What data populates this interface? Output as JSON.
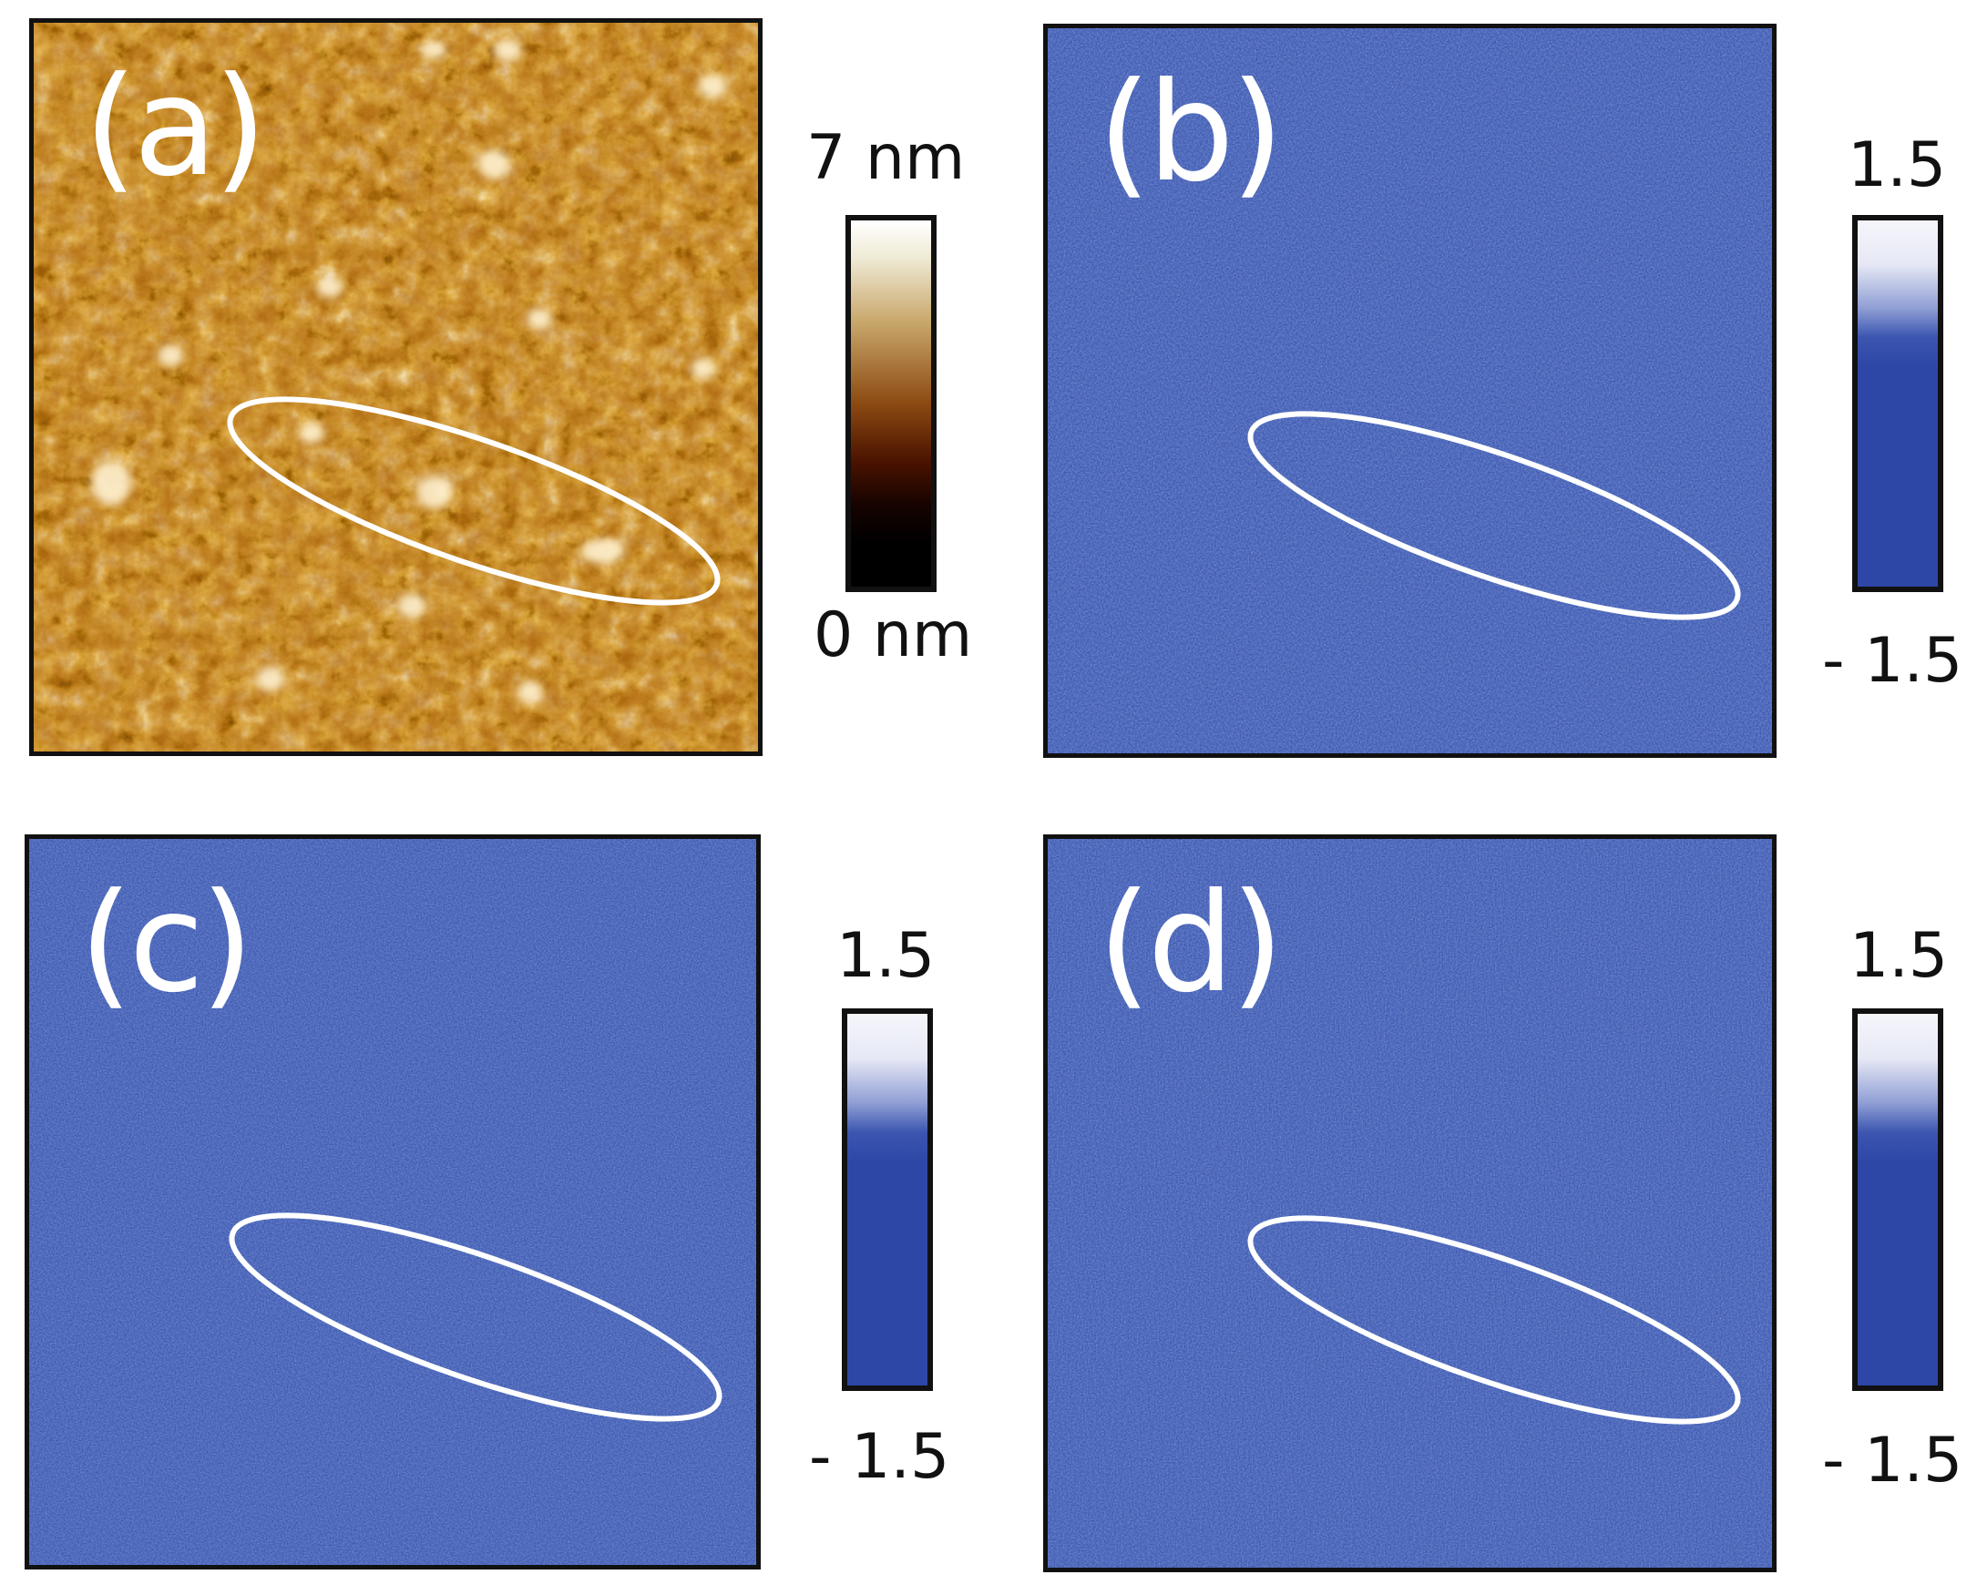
{
  "figure": {
    "panels": [
      {
        "label": "(a)",
        "type": "height",
        "colormap": [
          "#000000",
          "#2a0a00",
          "#6b2300",
          "#a64e00",
          "#cf7f1b",
          "#e9b866",
          "#ffffff"
        ],
        "scale": {
          "max_label": "7 nm",
          "min_label": "0 nm"
        }
      },
      {
        "label": "(b)",
        "type": "map",
        "colormap": [
          "#2d47a6",
          "#2d47a6",
          "#3852ad",
          "#f5f6fb"
        ],
        "scale": {
          "max_label": "1.5",
          "min_label": "- 1.5"
        }
      },
      {
        "label": "(c)",
        "type": "map",
        "colormap": [
          "#2d47a6",
          "#2d47a6",
          "#3852ad",
          "#f5f6fb"
        ],
        "scale": {
          "max_label": "1.5",
          "min_label": "- 1.5"
        }
      },
      {
        "label": "(d)",
        "type": "map",
        "colormap": [
          "#2d47a6",
          "#2d47a6",
          "#3852ad",
          "#f5f6fb"
        ],
        "scale": {
          "max_label": "1.5",
          "min_label": "- 1.5"
        }
      }
    ],
    "colors": {
      "frame": "#111111",
      "highlight_ellipse": "#ffffff",
      "panel_label": "#ffffff"
    }
  }
}
